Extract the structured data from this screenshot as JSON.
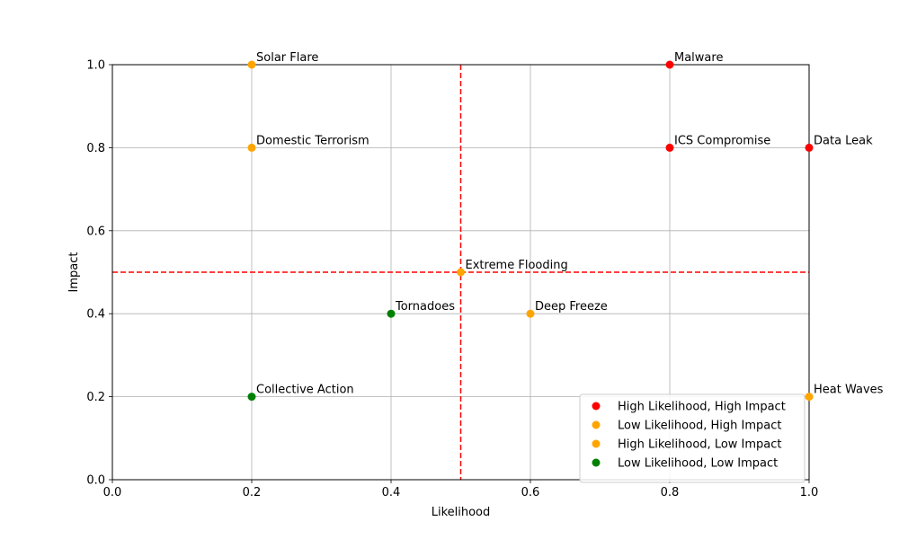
{
  "chart_data": {
    "type": "scatter",
    "title": "",
    "xlabel": "Likelihood",
    "ylabel": "Impact",
    "xlim": [
      0,
      1
    ],
    "ylim": [
      0,
      1
    ],
    "xticks": [
      "0.0",
      "0.2",
      "0.4",
      "0.6",
      "0.8",
      "1.0"
    ],
    "yticks": [
      "0.0",
      "0.2",
      "0.4",
      "0.6",
      "0.8",
      "1.0"
    ],
    "grid": true,
    "legend_position": "bottom-right",
    "thresholds": {
      "x": 0.5,
      "y": 0.5,
      "color": "#ff0000",
      "style": "dashed"
    },
    "series": [
      {
        "name": "High Likelihood, High Impact",
        "color": "#ff0000",
        "points": [
          {
            "label": "Malware",
            "x": 0.8,
            "y": 1.0
          },
          {
            "label": "ICS Compromise",
            "x": 0.8,
            "y": 0.8
          },
          {
            "label": "Data Leak",
            "x": 1.0,
            "y": 0.8
          }
        ]
      },
      {
        "name": "Low Likelihood, High Impact",
        "color": "#ffa500",
        "points": [
          {
            "label": "Solar Flare",
            "x": 0.2,
            "y": 1.0
          },
          {
            "label": "Domestic Terrorism",
            "x": 0.2,
            "y": 0.8
          },
          {
            "label": "Extreme Flooding",
            "x": 0.5,
            "y": 0.5
          }
        ]
      },
      {
        "name": "High Likelihood, Low Impact",
        "color": "#ffa500",
        "points": [
          {
            "label": "Deep Freeze",
            "x": 0.6,
            "y": 0.4
          },
          {
            "label": "Heat Waves",
            "x": 1.0,
            "y": 0.2
          }
        ]
      },
      {
        "name": "Low Likelihood, Low Impact",
        "color": "#008000",
        "points": [
          {
            "label": "Tornadoes",
            "x": 0.4,
            "y": 0.4
          },
          {
            "label": "Collective Action",
            "x": 0.2,
            "y": 0.2
          }
        ]
      }
    ]
  }
}
